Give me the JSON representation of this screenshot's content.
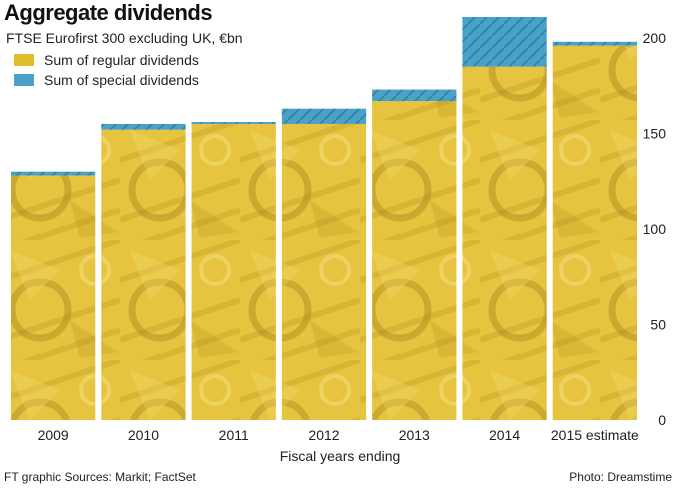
{
  "title": "Aggregate dividends",
  "subtitle": "FTSE Eurofirst 300 excluding UK, €bn",
  "legend": [
    {
      "label": "Sum of regular dividends",
      "color": "#e2bd2e"
    },
    {
      "label": "Sum of special dividends",
      "color": "#4aa3c7"
    }
  ],
  "footer": {
    "source": "FT graphic   Sources: Markit; FactSet",
    "photo": "Photo: Dreamstime"
  },
  "chart_data": {
    "type": "bar",
    "stacked": true,
    "categories": [
      "2009",
      "2010",
      "2011",
      "2012",
      "2013",
      "2014",
      "2015 estimate"
    ],
    "series": [
      {
        "name": "Sum of regular dividends",
        "values": [
          128,
          152,
          155,
          155,
          167,
          185,
          196
        ]
      },
      {
        "name": "Sum of special dividends",
        "values": [
          2,
          3,
          1,
          8,
          6,
          26,
          2
        ]
      }
    ],
    "xlabel": "Fiscal years ending",
    "ylabel": "",
    "ylim": [
      0,
      200
    ],
    "yticks": [
      0,
      50,
      100,
      150,
      200
    ],
    "y_axis_position": "right",
    "grid": false,
    "legend_position": "top-left"
  }
}
